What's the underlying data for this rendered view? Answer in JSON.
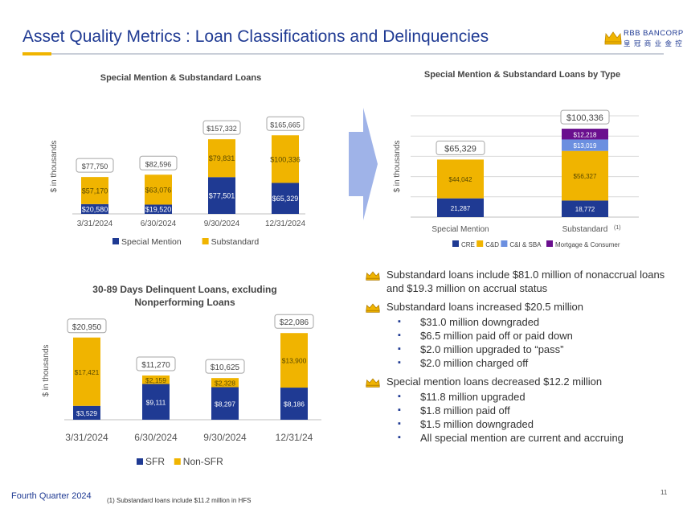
{
  "title": "Asset Quality Metrics : Loan Classifications and Delinquencies",
  "logo": {
    "name": "RBB BANCORP",
    "sub": "皇 冠 商 业 金 控"
  },
  "footer": {
    "left": "Fourth Quarter 2024",
    "footnote": "(1)   Substandard loans include $11.2 million in HFS",
    "page_number": "11"
  },
  "colors": {
    "navy": "#1f3a93",
    "gold": "#f0b400",
    "lightblue": "#6b8fe0",
    "purple": "#6a0f8e",
    "arrow": "#9fb3e8"
  },
  "chart_data": [
    {
      "type": "bar",
      "stacked": true,
      "title": "Special Mention & Substandard  Loans",
      "ylabel": "$ in thousands",
      "categories": [
        "3/31/2024",
        "6/30/2024",
        "9/30/2024",
        "12/31/2024"
      ],
      "category_note": "(1)",
      "series": [
        {
          "name": "Special Mention",
          "color": "#1f3a93",
          "values": [
            20580,
            19520,
            77501,
            65329
          ],
          "labels": [
            "$20,580",
            "$19,520",
            "$77,501",
            "$65,329"
          ]
        },
        {
          "name": "Substandard",
          "color": "#f0b400",
          "values": [
            57170,
            63076,
            79831,
            100336
          ],
          "labels": [
            "$57,170",
            "$63,076",
            "$79,831",
            "$100,336"
          ]
        }
      ],
      "totals": [
        "$77,750",
        "$82,596",
        "$157,332",
        "$165,665"
      ],
      "ylim": [
        0,
        200000
      ],
      "legend": "bottom"
    },
    {
      "type": "bar",
      "stacked": true,
      "title": "Special Mention & Substandard Loans by Type",
      "ylabel": "$ in thousands",
      "categories": [
        "Special Mention",
        "Substandard"
      ],
      "category_note": "(1)",
      "series": [
        {
          "name": "CRE",
          "color": "#1f3a93",
          "values": [
            21287,
            18772
          ],
          "labels": [
            "21,287",
            "18,772"
          ]
        },
        {
          "name": "C&D",
          "color": "#f0b400",
          "values": [
            44042,
            56327
          ],
          "labels": [
            "$44,042",
            "$56,327"
          ]
        },
        {
          "name": "C&I & SBA",
          "color": "#6b8fe0",
          "values": [
            0,
            13019
          ],
          "labels": [
            "",
            "$13,019"
          ]
        },
        {
          "name": "Mortgage & Consumer",
          "color": "#6a0f8e",
          "values": [
            0,
            12218
          ],
          "labels": [
            "",
            "$12,218"
          ]
        }
      ],
      "totals": [
        "$65,329",
        "$100,336"
      ],
      "ylim": [
        0,
        115000
      ],
      "grid": true,
      "legend": "bottom"
    },
    {
      "type": "bar",
      "stacked": true,
      "title": "30-89 Days Delinquent Loans, excluding Nonperforming Loans",
      "ylabel": "$ in thousands",
      "categories": [
        "3/31/2024",
        "6/30/2024",
        "9/30/2024",
        "12/31/24"
      ],
      "series": [
        {
          "name": "SFR",
          "color": "#1f3a93",
          "values": [
            3529,
            9111,
            8297,
            8186
          ],
          "labels": [
            "$3,529",
            "$9,111",
            "$8,297",
            "$8,186"
          ]
        },
        {
          "name": "Non-SFR",
          "color": "#f0b400",
          "values": [
            17421,
            2159,
            2328,
            13900
          ],
          "labels": [
            "$17,421",
            "$2,159",
            "$2,328",
            "$13,900"
          ]
        }
      ],
      "totals": [
        "$20,950",
        "$11,270",
        "$10,625",
        "$22,086"
      ],
      "ylim": [
        0,
        25000
      ],
      "legend": "bottom"
    }
  ],
  "bullets": [
    {
      "text": "Substandard loans include $81.0 million of nonaccrual loans and $19.3 million on accrual status",
      "sub": []
    },
    {
      "text": "Substandard loans increased $20.5 million",
      "sub": [
        "$31.0 million downgraded",
        "$6.5 million paid off or paid down",
        "$2.0 million upgraded to “pass”",
        "$2.0 million charged off"
      ]
    },
    {
      "text": "Special mention loans decreased $12.2 million",
      "sub": [
        "$11.8 million upgraded",
        "$1.8 million paid off",
        "$1.5 million downgraded",
        "All special mention are current and accruing"
      ]
    }
  ]
}
